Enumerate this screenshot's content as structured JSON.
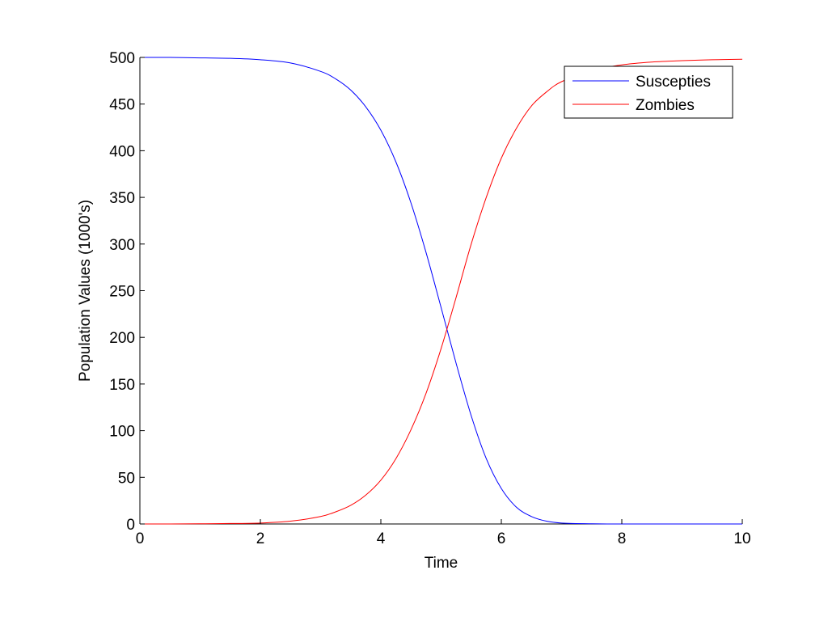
{
  "chart_data": {
    "type": "line",
    "xlabel": "Time",
    "ylabel": "Population Values (1000's)",
    "xlim": [
      0,
      10
    ],
    "ylim": [
      0,
      500
    ],
    "xticks": [
      0,
      2,
      4,
      6,
      8,
      10
    ],
    "yticks": [
      0,
      50,
      100,
      150,
      200,
      250,
      300,
      350,
      400,
      450,
      500
    ],
    "grid": false,
    "legend_position": "top-right",
    "x": [
      0,
      0.5,
      1,
      1.5,
      2,
      2.5,
      3,
      3.25,
      3.5,
      3.75,
      4,
      4.25,
      4.5,
      4.75,
      5,
      5.25,
      5.5,
      5.75,
      6,
      6.25,
      6.5,
      6.75,
      7,
      7.5,
      8,
      8.5,
      9,
      9.5,
      10
    ],
    "series": [
      {
        "name": "Suscepties",
        "color": "#0000ff",
        "values": [
          500,
          500,
          499.5,
          499,
          497.5,
          494,
          485,
          477,
          465,
          447,
          422,
          388,
          344,
          291,
          232,
          172,
          116,
          70,
          38,
          18,
          8,
          3,
          1,
          0.2,
          0,
          0,
          0,
          0,
          0
        ]
      },
      {
        "name": "Zombies",
        "color": "#ff0000",
        "values": [
          0,
          0,
          0.2,
          0.5,
          1,
          3,
          8,
          13,
          20,
          31,
          47,
          70,
          101,
          140,
          188,
          243,
          300,
          350,
          392,
          424,
          448,
          463,
          474,
          486,
          492,
          495,
          496.5,
          497.5,
          498
        ]
      }
    ]
  }
}
